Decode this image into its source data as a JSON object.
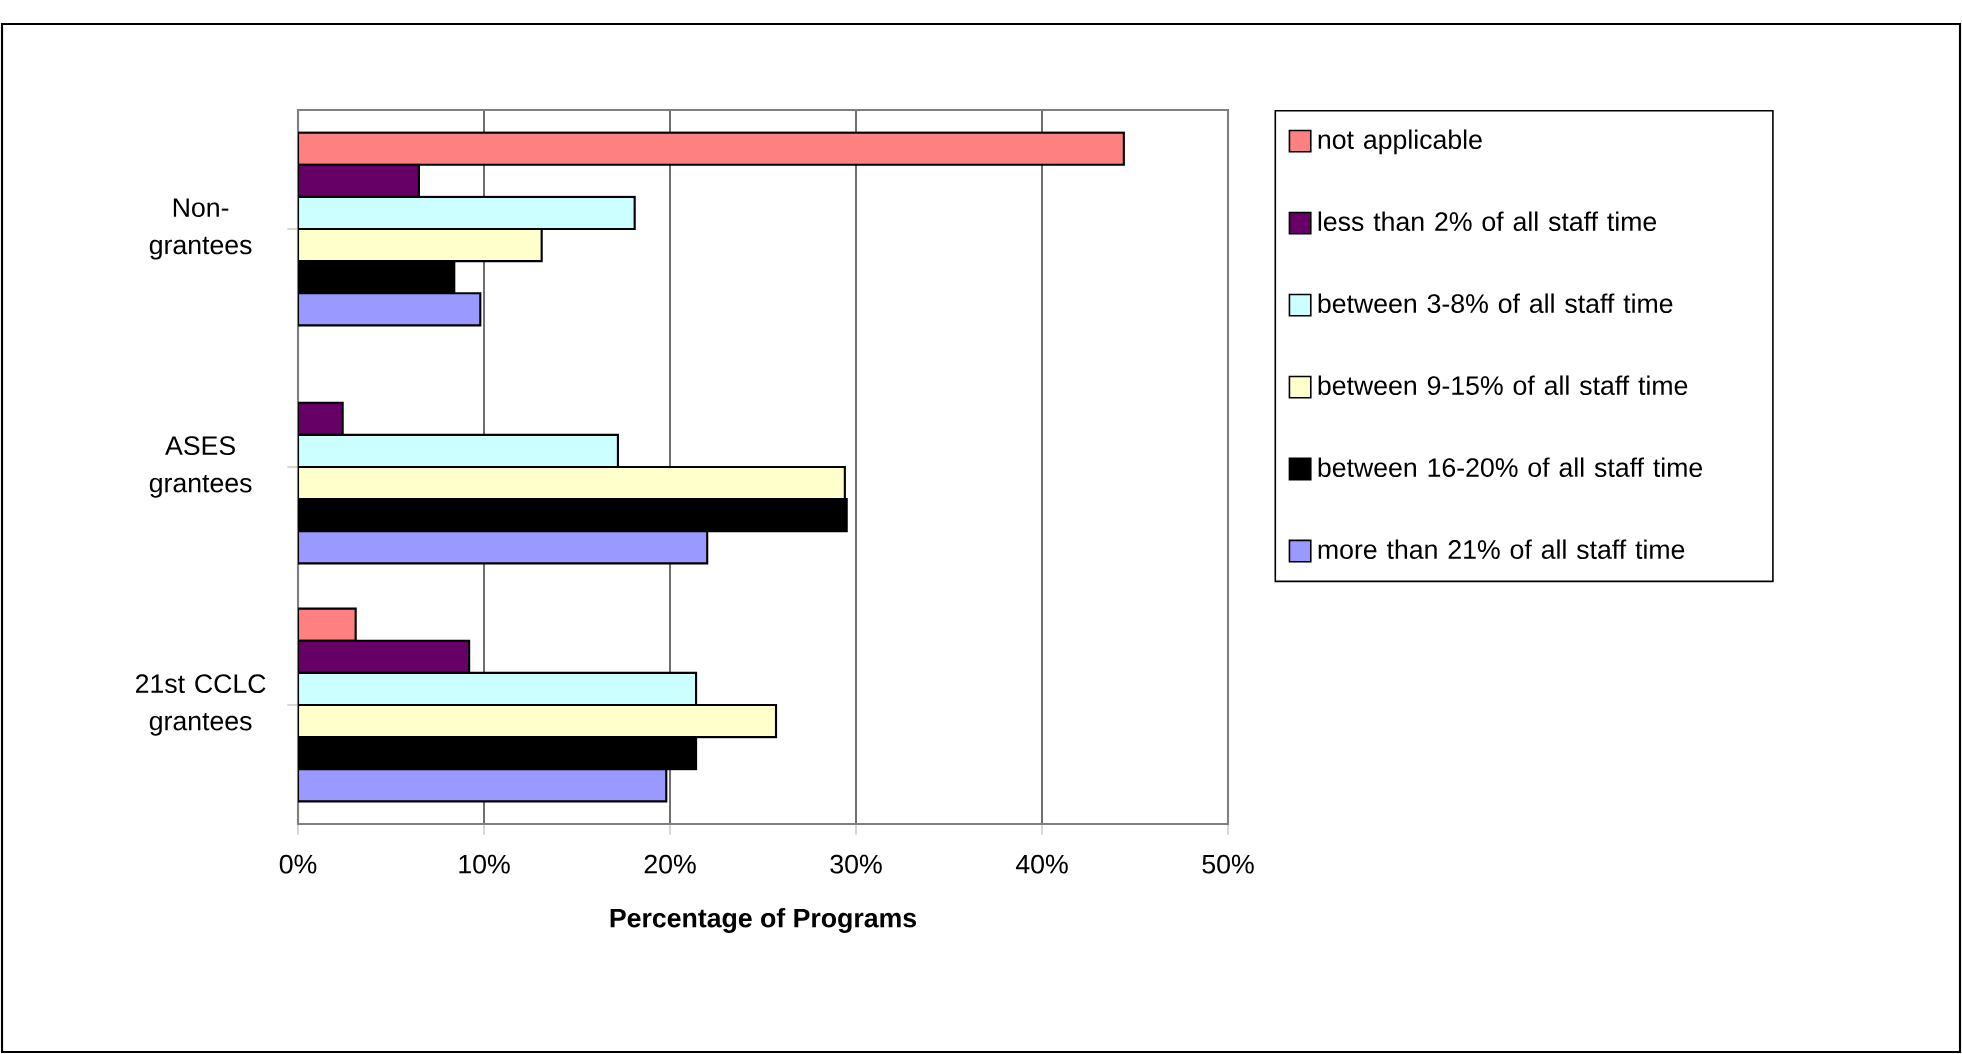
{
  "chart_data": {
    "type": "bar",
    "orientation": "horizontal",
    "categories": [
      "Non-grantees",
      "ASES grantees",
      "21st CCLC grantees"
    ],
    "series": [
      {
        "name": "not applicable",
        "color": "#ff8080",
        "values": [
          44.4,
          null,
          3.1
        ]
      },
      {
        "name": "less than 2% of all staff time",
        "color": "#660066",
        "values": [
          6.5,
          2.4,
          9.2
        ]
      },
      {
        "name": "between 3-8% of all staff time",
        "color": "#ccffff",
        "values": [
          18.1,
          17.2,
          21.4
        ]
      },
      {
        "name": "between 9-15% of all staff time",
        "color": "#ffffcc",
        "values": [
          13.1,
          29.4,
          25.7
        ]
      },
      {
        "name": "between 16-20% of all staff time",
        "color": "#000000",
        "values": [
          8.4,
          29.5,
          21.4
        ]
      },
      {
        "name": "more than 21% of all staff time",
        "color": "#9999ff",
        "values": [
          9.8,
          22.0,
          19.8
        ]
      }
    ],
    "xlabel": "Percentage of Programs",
    "xlim": [
      0,
      50
    ],
    "xticks": [
      {
        "value": 0,
        "label": "0%"
      },
      {
        "value": 10,
        "label": "10%"
      },
      {
        "value": 20,
        "label": "20%"
      },
      {
        "value": 30,
        "label": "30%"
      },
      {
        "value": 40,
        "label": "40%"
      },
      {
        "value": 50,
        "label": "50%"
      }
    ],
    "grid": "x",
    "legend": "right"
  }
}
